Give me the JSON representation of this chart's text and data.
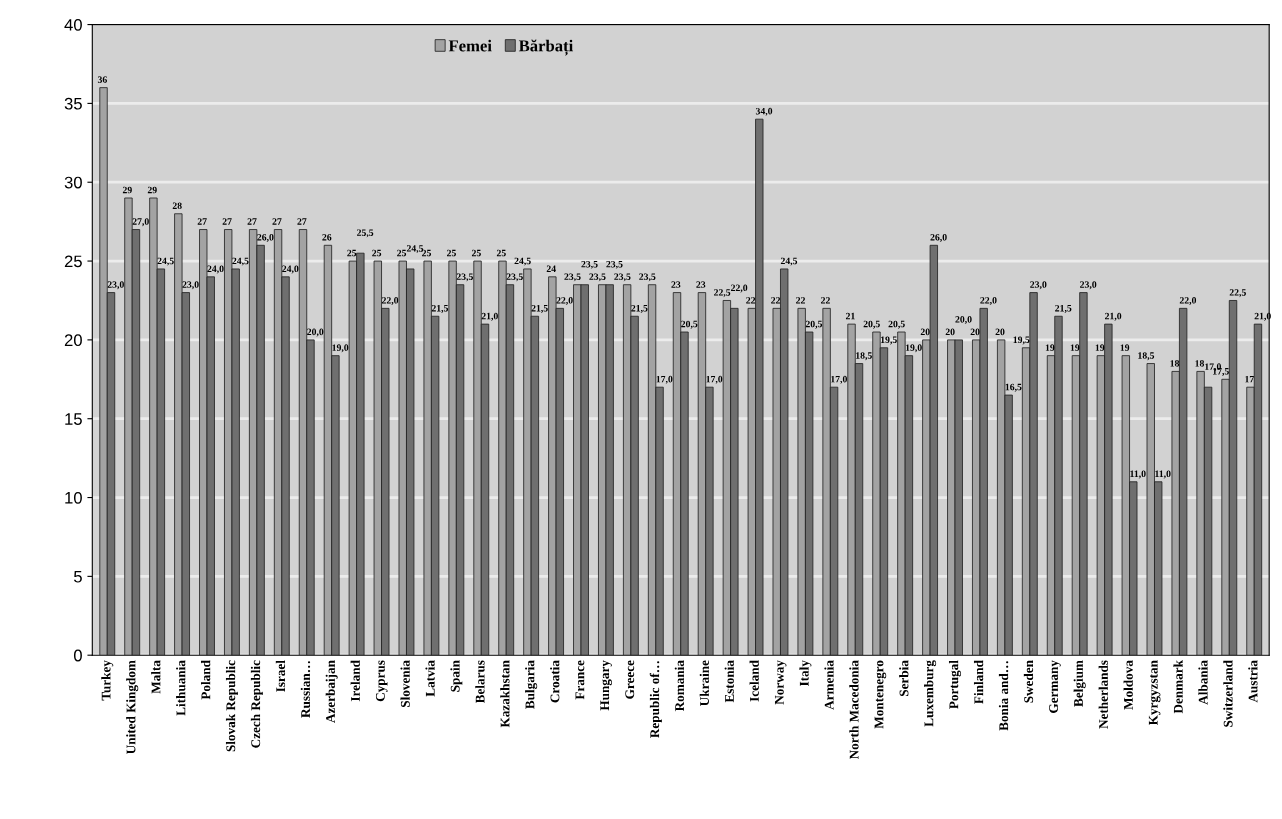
{
  "chart_data": {
    "type": "bar",
    "categories": [
      "Turkey",
      "United Kingdom",
      "Malta",
      "Lithuania",
      "Poland",
      "Slovak Republic",
      "Czech Republic",
      "Israel",
      "Russian…",
      "Azerbaijan",
      "Ireland",
      "Cyprus",
      "Slovenia",
      "Latvia",
      "Spain",
      "Belarus",
      "Kazakhstan",
      "Bulgaria",
      "Croatia",
      "France",
      "Hungary",
      "Greece",
      "Republic of…",
      "Romania",
      "Ukraine",
      "Estonia",
      "Iceland",
      "Norway",
      "Italy",
      "Armenia",
      "North Macedonia",
      "Montenegro",
      "Serbia",
      "Luxemburg",
      "Portugal",
      "Finland",
      "Bonia and…",
      "Sweden",
      "Germany",
      "Belgium",
      "Netherlands",
      "Moldova",
      "Kyrgyzstan",
      "Denmark",
      "Albania",
      "Switzerland",
      "Austria"
    ],
    "series": [
      {
        "name": "Femei",
        "color": "#a3a3a3",
        "values": [
          36,
          29,
          29,
          28,
          27,
          27,
          27,
          27,
          27,
          26,
          25,
          25,
          25,
          25,
          25,
          25,
          25,
          24.5,
          24,
          23.5,
          23.5,
          23.5,
          23.5,
          23,
          23,
          22.5,
          22,
          22,
          22,
          22,
          21,
          20.5,
          20.5,
          20,
          20,
          20,
          20,
          19.5,
          19,
          19,
          19,
          19,
          18.5,
          18,
          18,
          17.5,
          17
        ],
        "value_labels": [
          "36",
          "29",
          "29",
          "28",
          "27",
          "27",
          "27",
          "27",
          "27",
          "26",
          "25",
          "25",
          "25",
          "25",
          "25",
          "25",
          "25",
          "24,5",
          "24",
          "23,5",
          "23,5",
          "23,5",
          "23,5",
          "23",
          "23",
          "22,5",
          "22",
          "22",
          "22",
          "22",
          "21",
          "20,5",
          "20,5",
          "20",
          "20",
          "20",
          "20",
          "19,5",
          "19",
          "19",
          "19",
          "19",
          "18,5",
          "18",
          "18",
          "17,5",
          "17"
        ]
      },
      {
        "name": "Bărbați",
        "color": "#6f6f6f",
        "values": [
          23,
          27,
          24.5,
          23,
          24,
          24.5,
          26,
          24,
          20,
          19,
          25.5,
          22,
          24.5,
          21.5,
          23.5,
          21,
          23.5,
          21.5,
          22,
          23.5,
          23.5,
          21.5,
          17,
          20.5,
          17,
          22,
          34,
          24.5,
          20.5,
          17,
          18.5,
          19.5,
          19,
          26,
          20,
          22,
          16.5,
          23,
          21.5,
          23,
          21,
          11,
          11,
          22,
          17,
          22.5,
          21
        ],
        "value_labels": [
          "23,0",
          "27,0",
          "24,5",
          "23,0",
          "24,0",
          "24,5",
          "26,0",
          "24,0",
          "20,0",
          "19,0",
          "25,5",
          "22,0",
          "24,5",
          "21,5",
          "23,5",
          "21,0",
          "23,5",
          "21,5",
          "22,0",
          "23,5",
          "23,5",
          "21,5",
          "17,0",
          "20,5",
          "17,0",
          "22,0",
          "34,0",
          "24,5",
          "20,5",
          "17,0",
          "18,5",
          "19,5",
          "19,0",
          "26,0",
          "20,0",
          "22,0",
          "16,5",
          "23,0",
          "21,5",
          "23,0",
          "21,0",
          "11,0",
          "11,0",
          "22,0",
          "17,0",
          "22,5",
          "21,0"
        ]
      }
    ],
    "ylim": [
      0,
      40
    ],
    "yticks": [
      0,
      5,
      10,
      15,
      20,
      25,
      30,
      35,
      40
    ],
    "grid": "y",
    "legend": "top"
  }
}
